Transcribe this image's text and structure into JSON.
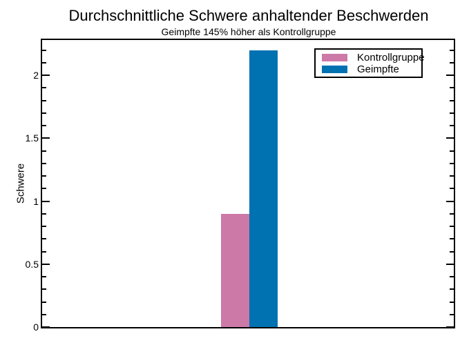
{
  "chart_data": {
    "type": "bar",
    "title": "Durchschnittliche Schwere anhaltender Beschwerden",
    "subtitle": "Geimpfte 145% höher als Kontrollgruppe",
    "xlabel": "",
    "ylabel": "Schwere",
    "ylim": [
      0,
      2.28
    ],
    "y_major_ticks": [
      0,
      0.5,
      1,
      1.5,
      2
    ],
    "y_major_tick_labels": [
      "0",
      "0.5",
      "1",
      "1.5",
      "2"
    ],
    "y_minor_ticks": [
      0.1,
      0.2,
      0.3,
      0.4,
      0.6,
      0.7,
      0.8,
      0.9,
      1.1,
      1.2,
      1.3,
      1.4,
      1.6,
      1.7,
      1.8,
      1.9,
      2.1,
      2.2
    ],
    "x_tick_labels": [],
    "grid": false,
    "legend_position": "upper right",
    "categories": [
      ""
    ],
    "series": [
      {
        "name": "Kontrollgruppe",
        "values": [
          0.9
        ],
        "color": "#CC79A7"
      },
      {
        "name": "Geimpfte",
        "values": [
          2.2
        ],
        "color": "#0072B2"
      }
    ],
    "axis_color": "#000000",
    "background_color": "#ffffff"
  }
}
